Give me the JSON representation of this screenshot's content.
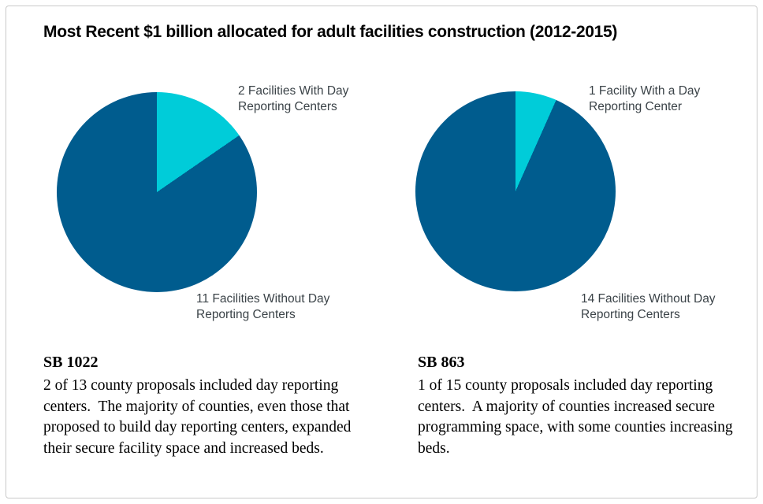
{
  "title": "Most Recent $1 billion allocated for adult facilities construction (2012-2015)",
  "chart_data": [
    {
      "type": "pie",
      "name": "SB 1022",
      "start_angle_deg": 0,
      "direction": "clockwise",
      "slices": [
        {
          "label": "2 Facilities With Day Reporting Centers",
          "value": 2,
          "color": "#00ccd9"
        },
        {
          "label": "11 Facilities Without Day Reporting Centers",
          "value": 11,
          "color": "#005c8e"
        }
      ]
    },
    {
      "type": "pie",
      "name": "SB 863",
      "start_angle_deg": 0,
      "direction": "clockwise",
      "slices": [
        {
          "label": "1 Facility With a Day Reporting Center",
          "value": 1,
          "color": "#00ccd9"
        },
        {
          "label": "14 Facilities Without Day Reporting Centers",
          "value": 14,
          "color": "#005c8e"
        }
      ]
    }
  ],
  "notes": [
    {
      "heading": "SB 1022",
      "text": "2 of 13 county proposals included day reporting centers.  The majority of counties, even those that proposed to build day reporting centers, expanded their secure facility space and increased beds."
    },
    {
      "heading": "SB 863",
      "text": "1 of 15 county proposals included day reporting centers.  A majority of counties increased secure programming space, with some counties increasing beds."
    }
  ],
  "colors": {
    "slice_with_drc": "#00ccd9",
    "slice_without_drc": "#005c8e",
    "label_text": "#3b4348",
    "border": "#c9c9c9"
  }
}
